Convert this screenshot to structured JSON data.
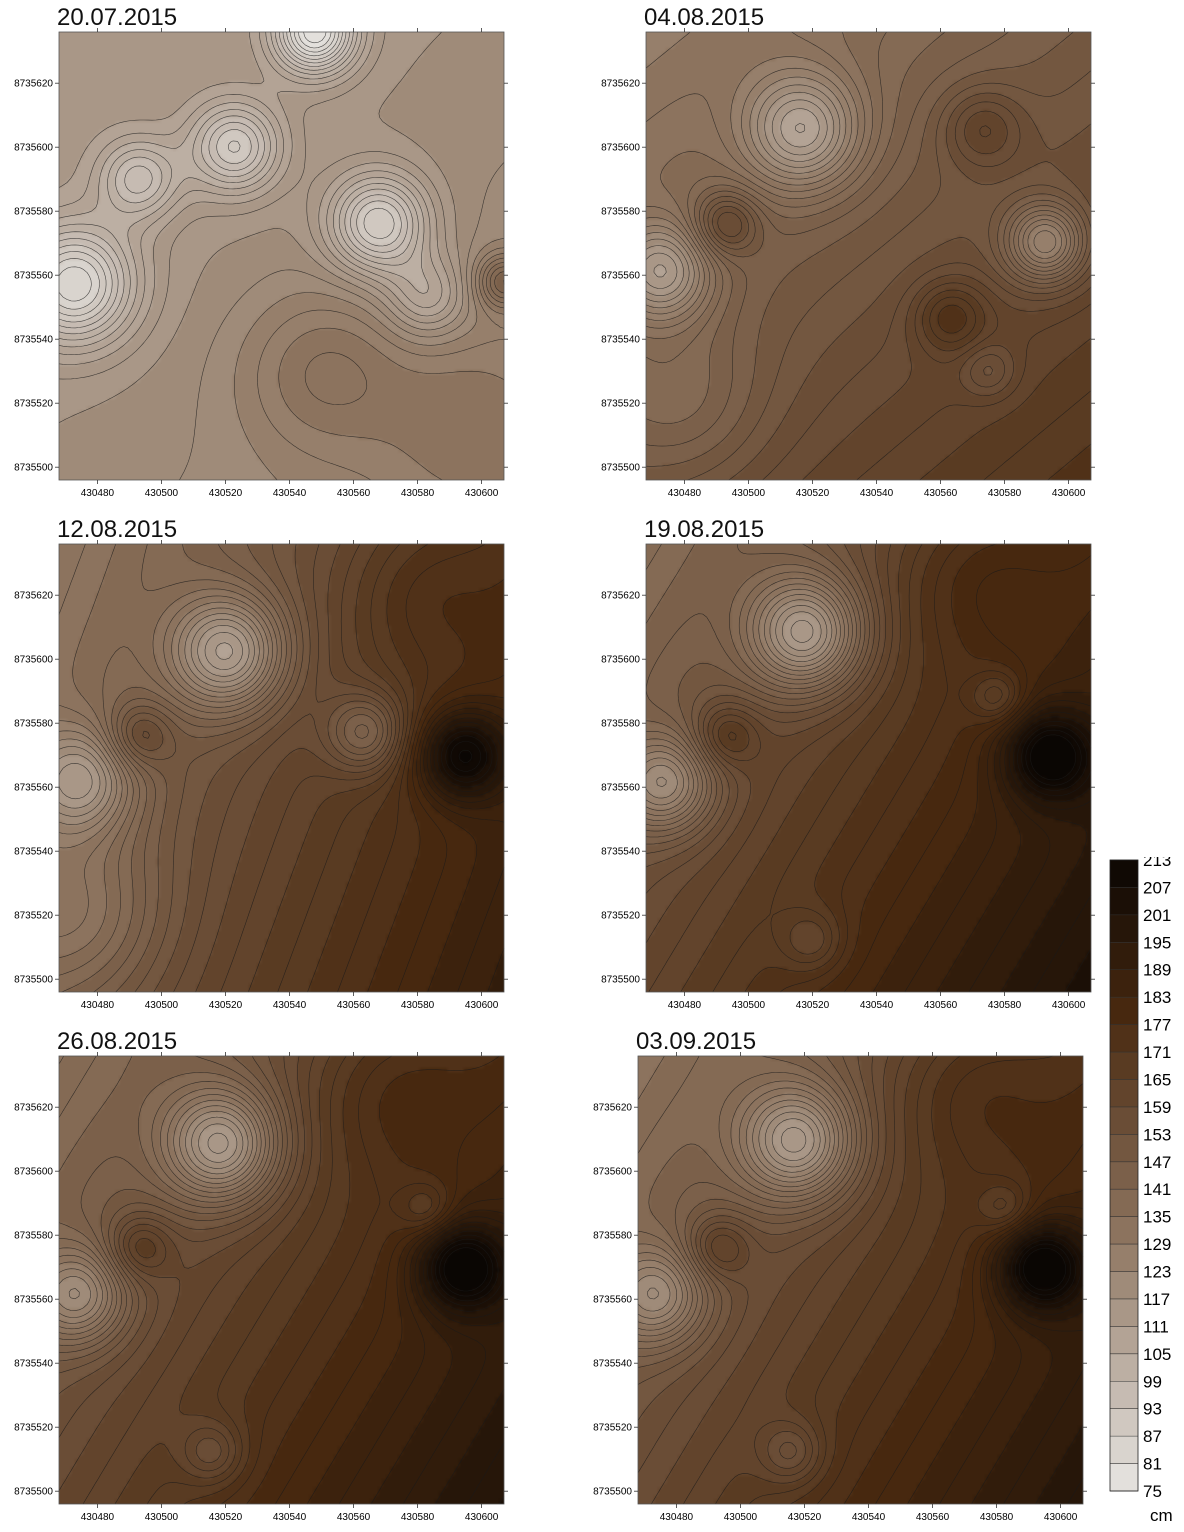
{
  "chart_data": [
    {
      "type": "heatmap",
      "title": "20.07.2015",
      "xticks": [
        "430480",
        "430500",
        "430520",
        "430540",
        "430560",
        "430580",
        "430600"
      ],
      "yticks": [
        "8735620",
        "8735600",
        "8735580",
        "8735560",
        "8735540",
        "8735520",
        "8735500"
      ],
      "xlim": [
        430468,
        430607
      ],
      "ylim": [
        8735496,
        8735636
      ],
      "field": {
        "base": 118,
        "tilt_x": 0.05,
        "tilt_y": 0.05,
        "features": [
          {
            "x": 430473,
            "y": 8735557,
            "amp": -34,
            "r": 13
          },
          {
            "x": 430493,
            "y": 8735590,
            "amp": -20,
            "r": 9
          },
          {
            "x": 430523,
            "y": 8735600,
            "amp": -26,
            "r": 10
          },
          {
            "x": 430568,
            "y": 8735576,
            "amp": -32,
            "r": 11
          },
          {
            "x": 430548,
            "y": 8735636,
            "amp": -40,
            "r": 9
          },
          {
            "x": 430583,
            "y": 8735553,
            "amp": -16,
            "r": 9
          },
          {
            "x": 430550,
            "y": 8735530,
            "amp": 12,
            "r": 18
          },
          {
            "x": 430595,
            "y": 8735515,
            "amp": 8,
            "r": 20
          },
          {
            "x": 430607,
            "y": 8735558,
            "amp": 22,
            "r": 6
          }
        ]
      }
    },
    {
      "type": "heatmap",
      "title": "04.08.2015",
      "xticks": [
        "430480",
        "430500",
        "430520",
        "430540",
        "430560",
        "430580",
        "430600"
      ],
      "yticks": [
        "8735620",
        "8735600",
        "8735580",
        "8735560",
        "8735540",
        "8735520",
        "8735500"
      ],
      "xlim": [
        430468,
        430607
      ],
      "ylim": [
        8735496,
        8735636
      ],
      "field": {
        "base": 150,
        "tilt_x": 0.15,
        "tilt_y": 0.18,
        "features": [
          {
            "x": 430473,
            "y": 8735561,
            "amp": -30,
            "r": 11
          },
          {
            "x": 430517,
            "y": 8735605,
            "amp": -32,
            "r": 13
          },
          {
            "x": 430593,
            "y": 8735570,
            "amp": -34,
            "r": 9
          },
          {
            "x": 430493,
            "y": 8735576,
            "amp": 20,
            "r": 7
          },
          {
            "x": 430573,
            "y": 8735606,
            "amp": 14,
            "r": 9
          },
          {
            "x": 430563,
            "y": 8735547,
            "amp": 16,
            "r": 8
          },
          {
            "x": 430575,
            "y": 8735530,
            "amp": -10,
            "r": 6
          },
          {
            "x": 430480,
            "y": 8735520,
            "amp": -10,
            "r": 18
          }
        ]
      }
    },
    {
      "type": "heatmap",
      "title": "12.08.2015",
      "xticks": [
        "430480",
        "430500",
        "430520",
        "430540",
        "430560",
        "430580",
        "430600"
      ],
      "yticks": [
        "8735620",
        "8735600",
        "8735580",
        "8735560",
        "8735540",
        "8735520",
        "8735500"
      ],
      "xlim": [
        430468,
        430607
      ],
      "ylim": [
        8735496,
        8735636
      ],
      "field": {
        "base": 160,
        "tilt_x": 0.32,
        "tilt_y": 0.12,
        "features": [
          {
            "x": 430475,
            "y": 8735562,
            "amp": -28,
            "r": 12
          },
          {
            "x": 430521,
            "y": 8735602,
            "amp": -40,
            "r": 13
          },
          {
            "x": 430493,
            "y": 8735576,
            "amp": 16,
            "r": 7
          },
          {
            "x": 430594,
            "y": 8735570,
            "amp": 36,
            "r": 10
          },
          {
            "x": 430564,
            "y": 8735577,
            "amp": -24,
            "r": 9
          },
          {
            "x": 430580,
            "y": 8735620,
            "amp": 8,
            "r": 16
          },
          {
            "x": 430475,
            "y": 8735520,
            "amp": -14,
            "r": 18
          }
        ]
      }
    },
    {
      "type": "heatmap",
      "title": "19.08.2015",
      "xticks": [
        "430480",
        "430500",
        "430520",
        "430540",
        "430560",
        "430580",
        "430600"
      ],
      "yticks": [
        "8735620",
        "8735600",
        "8735580",
        "8735560",
        "8735540",
        "8735520",
        "8735500"
      ],
      "xlim": [
        430468,
        430607
      ],
      "ylim": [
        8735496,
        8735636
      ],
      "field": {
        "base": 170,
        "tilt_x": 0.3,
        "tilt_y": 0.18,
        "features": [
          {
            "x": 430474,
            "y": 8735561,
            "amp": -32,
            "r": 11
          },
          {
            "x": 430518,
            "y": 8735608,
            "amp": -44,
            "r": 13
          },
          {
            "x": 430493,
            "y": 8735576,
            "amp": 16,
            "r": 7
          },
          {
            "x": 430594,
            "y": 8735570,
            "amp": 34,
            "r": 10
          },
          {
            "x": 430578,
            "y": 8735588,
            "amp": -14,
            "r": 6
          },
          {
            "x": 430520,
            "y": 8735512,
            "amp": -12,
            "r": 7
          },
          {
            "x": 430570,
            "y": 8735625,
            "amp": 10,
            "r": 18
          }
        ]
      }
    },
    {
      "type": "heatmap",
      "title": "26.08.2015",
      "xticks": [
        "430480",
        "430500",
        "430520",
        "430540",
        "430560",
        "430580",
        "430600"
      ],
      "yticks": [
        "8735620",
        "8735600",
        "8735580",
        "8735560",
        "8735540",
        "8735520",
        "8735500"
      ],
      "xlim": [
        430468,
        430607
      ],
      "ylim": [
        8735496,
        8735636
      ],
      "field": {
        "base": 168,
        "tilt_x": 0.3,
        "tilt_y": 0.18,
        "features": [
          {
            "x": 430474,
            "y": 8735561,
            "amp": -30,
            "r": 11
          },
          {
            "x": 430519,
            "y": 8735608,
            "amp": -42,
            "r": 13
          },
          {
            "x": 430493,
            "y": 8735576,
            "amp": 16,
            "r": 7
          },
          {
            "x": 430594,
            "y": 8735570,
            "amp": 36,
            "r": 10
          },
          {
            "x": 430583,
            "y": 8735588,
            "amp": -12,
            "r": 6
          },
          {
            "x": 430516,
            "y": 8735512,
            "amp": -14,
            "r": 7
          },
          {
            "x": 430570,
            "y": 8735625,
            "amp": 10,
            "r": 18
          }
        ]
      }
    },
    {
      "type": "heatmap",
      "title": "03.09.2015",
      "xticks": [
        "430480",
        "430500",
        "430520",
        "430540",
        "430560",
        "430580",
        "430600"
      ],
      "yticks": [
        "8735620",
        "8735600",
        "8735580",
        "8735560",
        "8735540",
        "8735520",
        "8735500"
      ],
      "xlim": [
        430468,
        430607
      ],
      "ylim": [
        8735496,
        8735636
      ],
      "field": {
        "base": 166,
        "tilt_x": 0.3,
        "tilt_y": 0.18,
        "features": [
          {
            "x": 430474,
            "y": 8735561,
            "amp": -28,
            "r": 11
          },
          {
            "x": 430518,
            "y": 8735609,
            "amp": -40,
            "r": 13
          },
          {
            "x": 430493,
            "y": 8735576,
            "amp": 16,
            "r": 7
          },
          {
            "x": 430594,
            "y": 8735570,
            "amp": 38,
            "r": 10
          },
          {
            "x": 430583,
            "y": 8735588,
            "amp": -12,
            "r": 6
          },
          {
            "x": 430516,
            "y": 8735512,
            "amp": -14,
            "r": 7
          },
          {
            "x": 430570,
            "y": 8735625,
            "amp": 10,
            "r": 18
          }
        ]
      }
    }
  ],
  "colorbar": {
    "values": [
      "213",
      "207",
      "201",
      "195",
      "189",
      "183",
      "177",
      "171",
      "165",
      "159",
      "153",
      "147",
      "141",
      "135",
      "129",
      "123",
      "117",
      "111",
      "105",
      "99",
      "93",
      "87",
      "81",
      "75"
    ],
    "unit": "cm",
    "min": 75,
    "max": 213,
    "step": 6
  },
  "colors": {
    "low": "#e8e6e3",
    "mid": "#8f7661",
    "high_mid": "#4a2a10",
    "high": "#0a0603",
    "contour": "#1a1a1a"
  }
}
